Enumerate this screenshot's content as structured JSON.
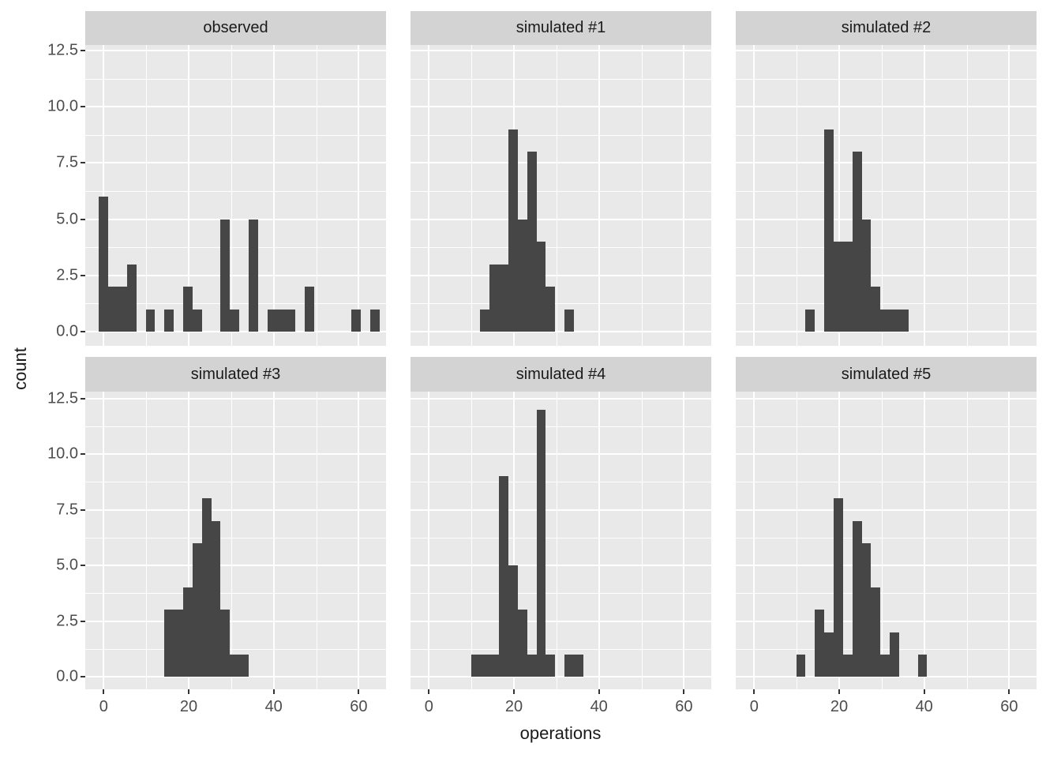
{
  "chart_data": {
    "type": "histogram",
    "description": "Faceted histograms (ggplot2 style), 2 rows x 3 columns, comparing an observed distribution to five simulated distributions",
    "layout_hint": {
      "rows": 2,
      "cols": 3,
      "grid": "on",
      "facet_strip_position": "top"
    },
    "xlabel": "operations",
    "ylabel": "count",
    "binwidth": 2.2,
    "xlim": [
      -4.3,
      66.4
    ],
    "ylim": [
      -0.6,
      12.75
    ],
    "x_ticks": [
      {
        "value": 0,
        "label": "0"
      },
      {
        "value": 20,
        "label": "20"
      },
      {
        "value": 40,
        "label": "40"
      },
      {
        "value": 60,
        "label": "60"
      }
    ],
    "x_minor_ticks": [
      10,
      30,
      50
    ],
    "y_ticks": [
      {
        "value": 0,
        "label": "0.0"
      },
      {
        "value": 2.5,
        "label": "2.5"
      },
      {
        "value": 5,
        "label": "5.0"
      },
      {
        "value": 7.5,
        "label": "7.5"
      },
      {
        "value": 10,
        "label": "10.0"
      },
      {
        "value": 12.5,
        "label": "12.5"
      }
    ],
    "y_minor_ticks": [
      1.25,
      3.75,
      6.25,
      8.75,
      11.25
    ],
    "facets": [
      {
        "label": "observed",
        "bars": [
          {
            "x0": -1.1,
            "count": 6
          },
          {
            "x0": 1.1,
            "count": 2
          },
          {
            "x0": 3.3,
            "count": 2
          },
          {
            "x0": 5.5,
            "count": 3
          },
          {
            "x0": 9.9,
            "count": 1
          },
          {
            "x0": 14.3,
            "count": 1
          },
          {
            "x0": 18.7,
            "count": 2
          },
          {
            "x0": 20.9,
            "count": 1
          },
          {
            "x0": 27.5,
            "count": 5
          },
          {
            "x0": 29.7,
            "count": 1
          },
          {
            "x0": 34.1,
            "count": 5
          },
          {
            "x0": 38.5,
            "count": 1
          },
          {
            "x0": 40.7,
            "count": 1
          },
          {
            "x0": 42.9,
            "count": 1
          },
          {
            "x0": 47.3,
            "count": 2
          },
          {
            "x0": 58.3,
            "count": 1
          },
          {
            "x0": 62.7,
            "count": 1
          }
        ]
      },
      {
        "label": "simulated #1",
        "bars": [
          {
            "x0": 12.1,
            "count": 1
          },
          {
            "x0": 14.3,
            "count": 3
          },
          {
            "x0": 16.5,
            "count": 3
          },
          {
            "x0": 18.7,
            "count": 9
          },
          {
            "x0": 20.9,
            "count": 5
          },
          {
            "x0": 23.1,
            "count": 8
          },
          {
            "x0": 25.3,
            "count": 4
          },
          {
            "x0": 27.5,
            "count": 2
          },
          {
            "x0": 31.9,
            "count": 1
          }
        ]
      },
      {
        "label": "simulated #2",
        "bars": [
          {
            "x0": 12.1,
            "count": 1
          },
          {
            "x0": 16.5,
            "count": 9
          },
          {
            "x0": 18.7,
            "count": 4
          },
          {
            "x0": 20.9,
            "count": 4
          },
          {
            "x0": 23.1,
            "count": 8
          },
          {
            "x0": 25.3,
            "count": 5
          },
          {
            "x0": 27.5,
            "count": 2
          },
          {
            "x0": 29.7,
            "count": 1
          },
          {
            "x0": 31.9,
            "count": 1
          },
          {
            "x0": 34.1,
            "count": 1
          }
        ]
      },
      {
        "label": "simulated #3",
        "bars": [
          {
            "x0": 14.3,
            "count": 3
          },
          {
            "x0": 16.5,
            "count": 3
          },
          {
            "x0": 18.7,
            "count": 4
          },
          {
            "x0": 20.9,
            "count": 6
          },
          {
            "x0": 23.1,
            "count": 8
          },
          {
            "x0": 25.3,
            "count": 7
          },
          {
            "x0": 27.5,
            "count": 3
          },
          {
            "x0": 29.7,
            "count": 1
          },
          {
            "x0": 31.9,
            "count": 1
          }
        ]
      },
      {
        "label": "simulated #4",
        "bars": [
          {
            "x0": 9.9,
            "count": 1
          },
          {
            "x0": 12.1,
            "count": 1
          },
          {
            "x0": 14.3,
            "count": 1
          },
          {
            "x0": 16.5,
            "count": 9
          },
          {
            "x0": 18.7,
            "count": 5
          },
          {
            "x0": 20.9,
            "count": 3
          },
          {
            "x0": 23.1,
            "count": 1
          },
          {
            "x0": 25.3,
            "count": 12
          },
          {
            "x0": 27.5,
            "count": 1
          },
          {
            "x0": 31.9,
            "count": 1
          },
          {
            "x0": 34.1,
            "count": 1
          }
        ]
      },
      {
        "label": "simulated #5",
        "bars": [
          {
            "x0": 9.9,
            "count": 1
          },
          {
            "x0": 14.3,
            "count": 3
          },
          {
            "x0": 16.5,
            "count": 2
          },
          {
            "x0": 18.7,
            "count": 8
          },
          {
            "x0": 20.9,
            "count": 1
          },
          {
            "x0": 23.1,
            "count": 7
          },
          {
            "x0": 25.3,
            "count": 6
          },
          {
            "x0": 27.5,
            "count": 4
          },
          {
            "x0": 29.7,
            "count": 1
          },
          {
            "x0": 31.9,
            "count": 2
          },
          {
            "x0": 38.5,
            "count": 1
          }
        ]
      }
    ],
    "colors": {
      "bar": "#464646",
      "panel_bg": "#e9e9e9",
      "strip_bg": "#d3d3d3",
      "grid": "#ffffff",
      "tick_label": "#4d4d4d",
      "axis_title": "#1a1a1a",
      "strip_text": "#1a1a1a",
      "tick_mark": "#333333",
      "figure_bg": "#ffffff"
    }
  }
}
